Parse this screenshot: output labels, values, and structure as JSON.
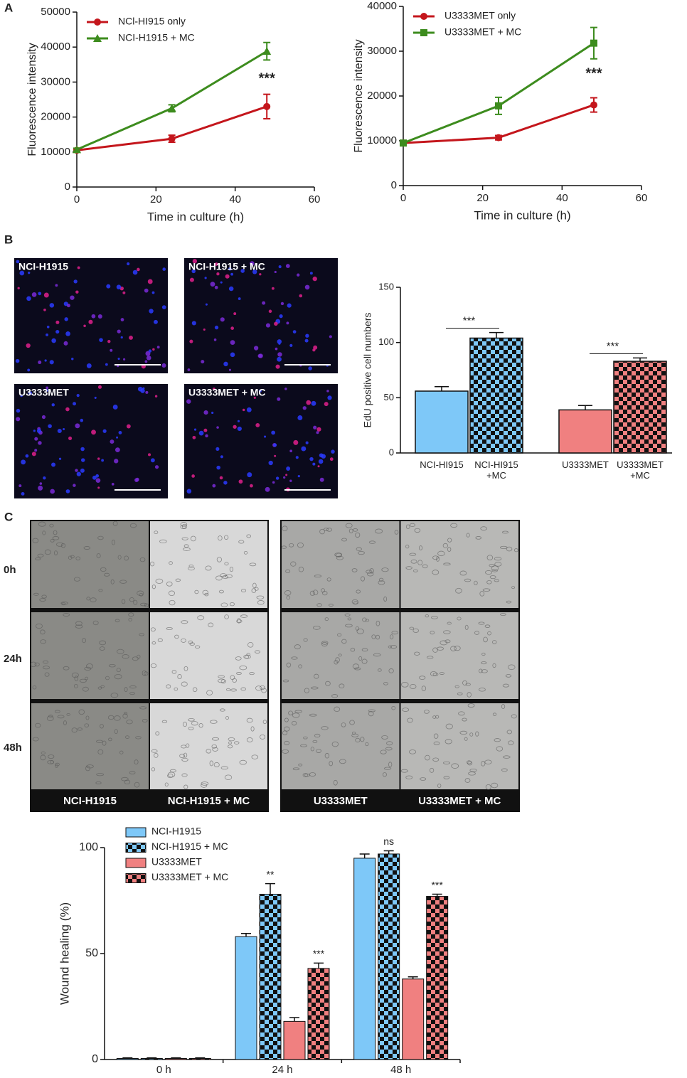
{
  "figure": {
    "panel_labels": [
      "A",
      "B",
      "C"
    ],
    "micrographs_b": [
      "NCI-H1915",
      "NCI-H1915 + MC",
      "U3333MET",
      "U3333MET + MC"
    ],
    "wound_rows": [
      "0h",
      "24h",
      "48h"
    ],
    "wound_columns": [
      "NCI-H1915",
      "NCI-H1915 + MC",
      "U3333MET",
      "U3333MET + MC"
    ]
  },
  "chart_data": [
    {
      "type": "line",
      "xlabel": "Time in culture (h)",
      "ylabel": "Fluorescence intensity",
      "x": [
        0,
        24,
        48
      ],
      "xlim": [
        0,
        60
      ],
      "xticks": [
        0,
        20,
        40,
        60
      ],
      "ylim": [
        0,
        50000
      ],
      "yticks": [
        0,
        10000,
        20000,
        30000,
        40000,
        50000
      ],
      "annotation": "***",
      "series": [
        {
          "name": "NCl-HI915 only",
          "color": "#c4161c",
          "marker": "circle",
          "values": [
            10500,
            13800,
            23000
          ],
          "errors": [
            400,
            1000,
            3500
          ]
        },
        {
          "name": "NCI-H1915 + MC",
          "color": "#3d8c1e",
          "marker": "triangle",
          "values": [
            10700,
            22500,
            38800
          ],
          "errors": [
            400,
            1000,
            2500
          ]
        }
      ]
    },
    {
      "type": "line",
      "xlabel": "Time in culture (h)",
      "ylabel": "Fluorescence intensity",
      "x": [
        0,
        24,
        48
      ],
      "xlim": [
        0,
        60
      ],
      "xticks": [
        0,
        20,
        40,
        60
      ],
      "ylim": [
        0,
        40000
      ],
      "yticks": [
        0,
        10000,
        20000,
        30000,
        40000
      ],
      "annotation": "***",
      "series": [
        {
          "name": "U3333MET only",
          "color": "#c4161c",
          "marker": "circle",
          "values": [
            9500,
            10700,
            18000
          ],
          "errors": [
            400,
            500,
            1600
          ]
        },
        {
          "name": "U3333MET + MC",
          "color": "#3d8c1e",
          "marker": "square",
          "values": [
            9500,
            17800,
            31800
          ],
          "errors": [
            400,
            1900,
            3500
          ]
        }
      ]
    },
    {
      "type": "bar",
      "ylabel": "EdU positive cell numbers",
      "categories": [
        "NCI-HI915",
        "NCI-HI915\n+MC",
        "U3333MET",
        "U3333MET\n+MC"
      ],
      "values": [
        56,
        104,
        39,
        83
      ],
      "errors": [
        4,
        5,
        4,
        3
      ],
      "colors": [
        "#7ec8f8",
        "#7ec8f8",
        "#f08080",
        "#f08080"
      ],
      "checkered": [
        false,
        true,
        false,
        true
      ],
      "ylim": [
        0,
        150
      ],
      "yticks": [
        0,
        50,
        100,
        150
      ],
      "significance": [
        "***",
        "***"
      ]
    },
    {
      "type": "grouped_bar",
      "ylabel": "Wound healing (%)",
      "categories": [
        "0 h",
        "24 h",
        "48 h"
      ],
      "ylim": [
        0,
        100
      ],
      "yticks": [
        0,
        50,
        100
      ],
      "legend": "upper left",
      "series": [
        {
          "name": "NCI-H1915",
          "color": "#7ec8f8",
          "checkered": false,
          "values": [
            0.5,
            58,
            95
          ],
          "errors": [
            0.3,
            1.5,
            2
          ],
          "significance": [
            null,
            null,
            null
          ]
        },
        {
          "name": "NCI-H1915 + MC",
          "color": "#7ec8f8",
          "checkered": true,
          "values": [
            0.5,
            78,
            97
          ],
          "errors": [
            0.3,
            5,
            1.5
          ],
          "significance": [
            null,
            "**",
            "ns"
          ]
        },
        {
          "name": "U3333MET",
          "color": "#f08080",
          "checkered": false,
          "values": [
            0.5,
            18,
            38
          ],
          "errors": [
            0.3,
            1.8,
            1
          ],
          "significance": [
            null,
            null,
            null
          ]
        },
        {
          "name": "U3333MET + MC",
          "color": "#f08080",
          "checkered": true,
          "values": [
            0.5,
            43,
            77
          ],
          "errors": [
            0.3,
            2.5,
            1
          ],
          "significance": [
            null,
            "***",
            "***"
          ]
        }
      ]
    }
  ]
}
